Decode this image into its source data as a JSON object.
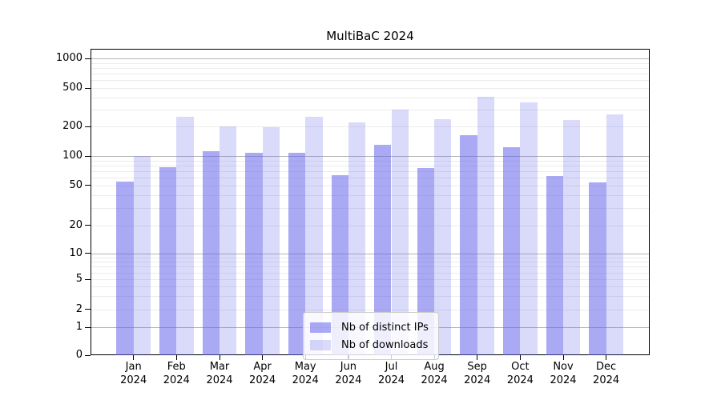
{
  "chart_data": {
    "type": "bar",
    "title": "MultiBaC 2024",
    "categories": [
      "Jan",
      "Feb",
      "Mar",
      "Apr",
      "May",
      "Jun",
      "Jul",
      "Aug",
      "Sep",
      "Oct",
      "Nov",
      "Dec"
    ],
    "category_year": "2024",
    "series": [
      {
        "name": "Nb of distinct IPs",
        "color": "rgba(100,100,235,0.55)",
        "values": [
          55,
          77,
          113,
          108,
          108,
          63,
          131,
          75,
          165,
          123,
          62,
          54
        ]
      },
      {
        "name": "Nb of downloads",
        "color": "rgba(100,100,235,0.24)",
        "values": [
          100,
          254,
          200,
          199,
          253,
          220,
          299,
          239,
          410,
          353,
          234,
          269
        ]
      }
    ],
    "y_scale": "symlog",
    "y_ticks": [
      0,
      1,
      2,
      5,
      10,
      20,
      50,
      100,
      200,
      500,
      1000
    ],
    "ylim": [
      0,
      1260
    ],
    "grid": "both",
    "legend_position": "lower center"
  },
  "colors": {
    "grid_major": "#b4b4b4",
    "grid_minor": "#ebebeb",
    "axis": "#000000",
    "background": "#ffffff"
  }
}
